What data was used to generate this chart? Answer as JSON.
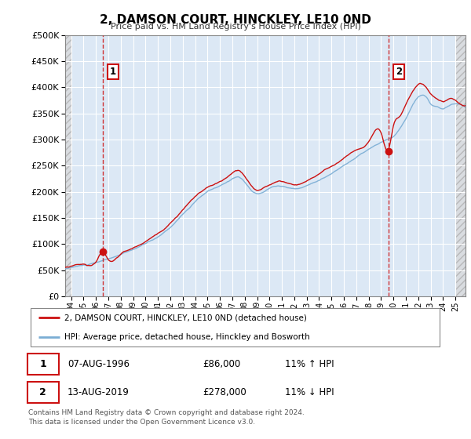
{
  "title": "2, DAMSON COURT, HINCKLEY, LE10 0ND",
  "subtitle": "Price paid vs. HM Land Registry's House Price Index (HPI)",
  "ylabel_ticks": [
    "£0",
    "£50K",
    "£100K",
    "£150K",
    "£200K",
    "£250K",
    "£300K",
    "£350K",
    "£400K",
    "£450K",
    "£500K"
  ],
  "ytick_values": [
    0,
    50000,
    100000,
    150000,
    200000,
    250000,
    300000,
    350000,
    400000,
    450000,
    500000
  ],
  "ylim": [
    0,
    500000
  ],
  "xlim_start": 1993.5,
  "xlim_end": 2025.8,
  "background_color": "#ffffff",
  "plot_bg_color": "#dce8f5",
  "grid_color": "#ffffff",
  "hpi_line_color": "#7aadd4",
  "price_line_color": "#cc1111",
  "point1_year": 1996.58,
  "point1_value": 86000,
  "point2_year": 2019.61,
  "point2_value": 278000,
  "legend_line1": "2, DAMSON COURT, HINCKLEY, LE10 0ND (detached house)",
  "legend_line2": "HPI: Average price, detached house, Hinckley and Bosworth",
  "table_row1": [
    "1",
    "07-AUG-1996",
    "£86,000",
    "11% ↑ HPI"
  ],
  "table_row2": [
    "2",
    "13-AUG-2019",
    "£278,000",
    "11% ↓ HPI"
  ],
  "footer": "Contains HM Land Registry data © Crown copyright and database right 2024.\nThis data is licensed under the Open Government Licence v3.0.",
  "dashed_vline1_x": 1996.58,
  "dashed_vline2_x": 2019.61,
  "hatch_color": "#bbbbbb"
}
